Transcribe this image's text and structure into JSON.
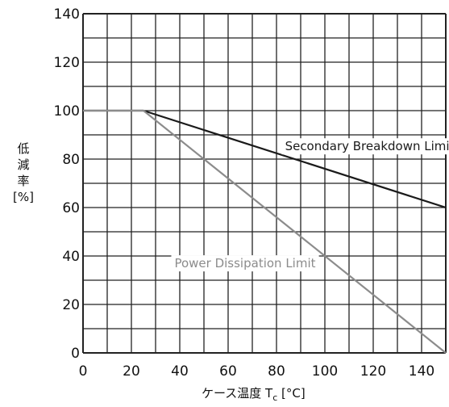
{
  "chart_data": {
    "type": "line",
    "xlabel": "ケース温度 Tc [°C]",
    "xlabel_main": "ケース温度 T",
    "xlabel_sub": "c",
    "xlabel_unit": "[°C]",
    "ylabel": "低減率 [%]",
    "ylabel_lines": [
      "低",
      "減",
      "率",
      "[%]"
    ],
    "xlim": [
      0,
      150
    ],
    "ylim": [
      0,
      140
    ],
    "x_ticks": [
      "0",
      "20",
      "40",
      "60",
      "80",
      "100",
      "120",
      "140"
    ],
    "y_ticks": [
      "0",
      "20",
      "40",
      "60",
      "80",
      "100",
      "120",
      "140"
    ],
    "grid": true,
    "series": [
      {
        "name": "Secondary Breakdown Limit",
        "x": [
          0,
          25,
          150
        ],
        "y": [
          100,
          100,
          60
        ]
      },
      {
        "name": "Power Dissipation Limit",
        "x": [
          0,
          25,
          150
        ],
        "y": [
          100,
          100,
          0
        ]
      }
    ],
    "colors": {
      "secondary": "#1a1a1a",
      "power": "#8c8c8c",
      "grid": "#222222"
    }
  }
}
